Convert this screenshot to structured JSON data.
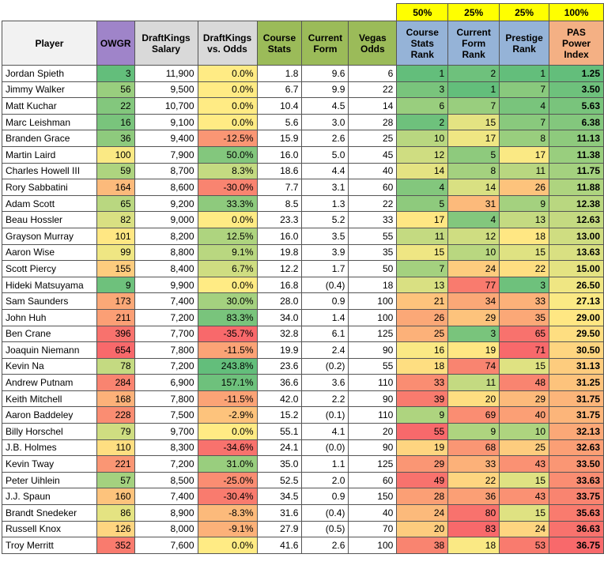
{
  "weights": [
    "50%",
    "25%",
    "25%",
    "100%"
  ],
  "table": {
    "headers": [
      "Player",
      "OWGR",
      "DraftKings Salary",
      "DraftKings vs. Odds",
      "Course Stats",
      "Current Form",
      "Vegas Odds",
      "Course Stats Rank",
      "Current Form Rank",
      "Prestige Rank",
      "PAS Power Index"
    ],
    "rows": [
      [
        "Jordan Spieth",
        "3",
        "11,900",
        "0.0%",
        "1.8",
        "9.6",
        "6",
        "1",
        "2",
        "1",
        "1.25"
      ],
      [
        "Jimmy Walker",
        "56",
        "9,500",
        "0.0%",
        "6.7",
        "9.9",
        "22",
        "3",
        "1",
        "7",
        "3.50"
      ],
      [
        "Matt Kuchar",
        "22",
        "10,700",
        "0.0%",
        "10.4",
        "4.5",
        "14",
        "6",
        "7",
        "4",
        "5.63"
      ],
      [
        "Marc Leishman",
        "16",
        "9,100",
        "0.0%",
        "5.6",
        "3.0",
        "28",
        "2",
        "15",
        "7",
        "6.38"
      ],
      [
        "Branden Grace",
        "36",
        "9,400",
        "-12.5%",
        "15.9",
        "2.6",
        "25",
        "10",
        "17",
        "8",
        "11.13"
      ],
      [
        "Martin Laird",
        "100",
        "7,900",
        "50.0%",
        "16.0",
        "5.0",
        "45",
        "12",
        "5",
        "17",
        "11.38"
      ],
      [
        "Charles Howell III",
        "59",
        "8,700",
        "8.3%",
        "18.6",
        "4.4",
        "40",
        "14",
        "8",
        "11",
        "11.75"
      ],
      [
        "Rory Sabbatini",
        "164",
        "8,600",
        "-30.0%",
        "7.7",
        "3.1",
        "60",
        "4",
        "14",
        "26",
        "11.88"
      ],
      [
        "Adam Scott",
        "65",
        "9,200",
        "33.3%",
        "8.5",
        "1.3",
        "22",
        "5",
        "31",
        "9",
        "12.38"
      ],
      [
        "Beau Hossler",
        "82",
        "9,000",
        "0.0%",
        "23.3",
        "5.2",
        "33",
        "17",
        "4",
        "13",
        "12.63"
      ],
      [
        "Grayson Murray",
        "101",
        "8,200",
        "12.5%",
        "16.0",
        "3.5",
        "55",
        "11",
        "12",
        "18",
        "13.00"
      ],
      [
        "Aaron Wise",
        "99",
        "8,800",
        "9.1%",
        "19.8",
        "3.9",
        "35",
        "15",
        "10",
        "15",
        "13.63"
      ],
      [
        "Scott Piercy",
        "155",
        "8,400",
        "6.7%",
        "12.2",
        "1.7",
        "50",
        "7",
        "24",
        "22",
        "15.00"
      ],
      [
        "Hideki Matsuyama",
        "9",
        "9,900",
        "0.0%",
        "16.8",
        "(0.4)",
        "18",
        "13",
        "77",
        "3",
        "26.50"
      ],
      [
        "Sam Saunders",
        "173",
        "7,400",
        "30.0%",
        "28.0",
        "0.9",
        "100",
        "21",
        "34",
        "33",
        "27.13"
      ],
      [
        "John Huh",
        "211",
        "7,200",
        "83.3%",
        "34.0",
        "1.4",
        "100",
        "26",
        "29",
        "35",
        "29.00"
      ],
      [
        "Ben Crane",
        "396",
        "7,700",
        "-35.7%",
        "32.8",
        "6.1",
        "125",
        "25",
        "3",
        "65",
        "29.50"
      ],
      [
        "Joaquin Niemann",
        "654",
        "7,800",
        "-11.5%",
        "19.9",
        "2.4",
        "90",
        "16",
        "19",
        "71",
        "30.50"
      ],
      [
        "Kevin Na",
        "78",
        "7,200",
        "243.8%",
        "23.6",
        "(0.2)",
        "55",
        "18",
        "74",
        "15",
        "31.13"
      ],
      [
        "Andrew Putnam",
        "284",
        "6,900",
        "157.1%",
        "36.6",
        "3.6",
        "110",
        "33",
        "11",
        "48",
        "31.25"
      ],
      [
        "Keith Mitchell",
        "168",
        "7,800",
        "-11.5%",
        "42.0",
        "2.2",
        "90",
        "39",
        "20",
        "29",
        "31.75"
      ],
      [
        "Aaron Baddeley",
        "228",
        "7,500",
        "-2.9%",
        "15.2",
        "(0.1)",
        "110",
        "9",
        "69",
        "40",
        "31.75"
      ],
      [
        "Billy Horschel",
        "79",
        "9,700",
        "0.0%",
        "55.1",
        "4.1",
        "20",
        "55",
        "9",
        "10",
        "32.13"
      ],
      [
        "J.B. Holmes",
        "110",
        "8,300",
        "-34.6%",
        "24.1",
        "(0.0)",
        "90",
        "19",
        "68",
        "25",
        "32.63"
      ],
      [
        "Kevin Tway",
        "221",
        "7,200",
        "31.0%",
        "35.0",
        "1.1",
        "125",
        "29",
        "33",
        "43",
        "33.50"
      ],
      [
        "Peter Uihlein",
        "57",
        "8,500",
        "-25.0%",
        "52.5",
        "2.0",
        "60",
        "49",
        "22",
        "15",
        "33.63"
      ],
      [
        "J.J. Spaun",
        "160",
        "7,400",
        "-30.4%",
        "34.5",
        "0.9",
        "150",
        "28",
        "36",
        "43",
        "33.75"
      ],
      [
        "Brandt Snedeker",
        "86",
        "8,900",
        "-8.3%",
        "31.6",
        "(0.4)",
        "40",
        "24",
        "80",
        "15",
        "35.63"
      ],
      [
        "Russell Knox",
        "126",
        "8,000",
        "-9.1%",
        "27.9",
        "(0.5)",
        "70",
        "20",
        "83",
        "24",
        "36.63"
      ],
      [
        "Troy Merritt",
        "352",
        "7,600",
        "0.0%",
        "41.6",
        "2.6",
        "100",
        "38",
        "18",
        "53",
        "36.75"
      ]
    ]
  }
}
